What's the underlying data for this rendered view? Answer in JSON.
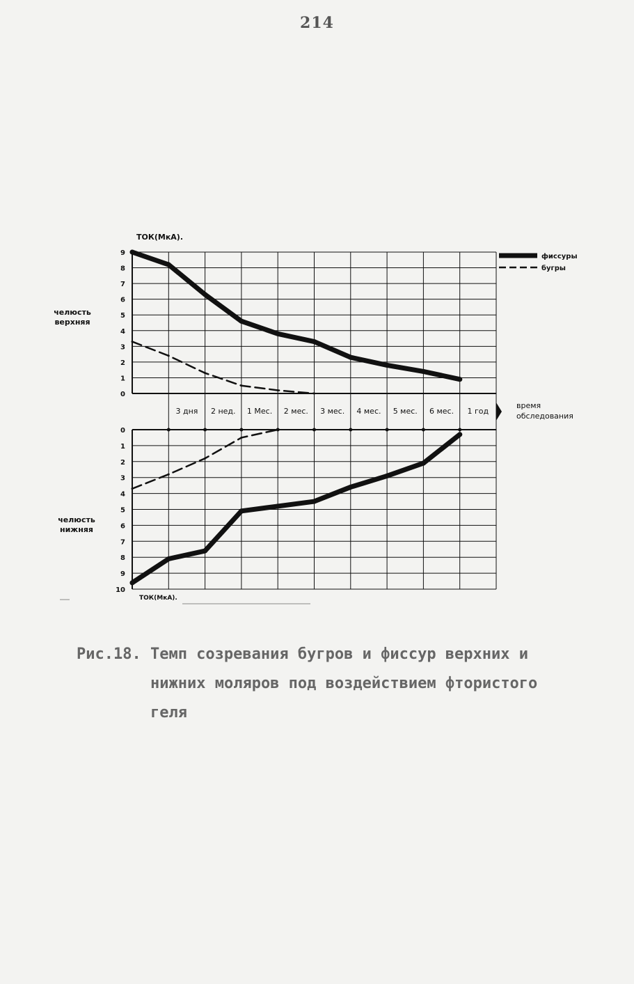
{
  "page": {
    "number": "214"
  },
  "caption": {
    "line1": "Рис.18. Темп созревания бугров и фиссур верхних и",
    "line2": "нижних моляров под воздействием фтористого",
    "line3": "геля"
  },
  "chart_data": [
    {
      "type": "line",
      "ylabel": "ТОК(МкА).",
      "row_label": [
        "челюсть",
        "верхняя"
      ],
      "y_ticks": [
        "0",
        "1",
        "2",
        "3",
        "4",
        "5",
        "6",
        "7",
        "8",
        "9"
      ],
      "ylim": [
        0,
        9
      ],
      "x_index": [
        0,
        1,
        2,
        3,
        4,
        5,
        6,
        7,
        8,
        9
      ],
      "series": [
        {
          "name": "фиссуры",
          "style": "solid-thick",
          "x": [
            0,
            1,
            2,
            3,
            4,
            5,
            6,
            7,
            8,
            9
          ],
          "values": [
            9,
            8.2,
            6.3,
            4.6,
            3.8,
            3.3,
            2.3,
            1.8,
            1.4,
            0.9
          ]
        },
        {
          "name": "бугры",
          "style": "dashed",
          "x": [
            0,
            1,
            2,
            3,
            4,
            5
          ],
          "values": [
            3.3,
            2.4,
            1.3,
            0.5,
            0.2,
            0
          ]
        }
      ]
    },
    {
      "type": "line",
      "ylabel": "ТОК(МкА).",
      "row_label": [
        "челюсть",
        "нижняя"
      ],
      "y_ticks": [
        "0",
        "1",
        "2",
        "3",
        "4",
        "5",
        "6",
        "7",
        "8",
        "9",
        "10"
      ],
      "ylim": [
        0,
        10
      ],
      "y_inverted": true,
      "series": [
        {
          "name": "фиссуры",
          "style": "solid-thick",
          "x": [
            0,
            1,
            2,
            3,
            4,
            5,
            6,
            7,
            8,
            9
          ],
          "values": [
            9.6,
            8.1,
            7.6,
            5.1,
            4.8,
            4.5,
            3.6,
            2.9,
            2.1,
            0.3
          ]
        },
        {
          "name": "бугры",
          "style": "dashed",
          "x": [
            0,
            1,
            2,
            3,
            4
          ],
          "values": [
            3.7,
            2.8,
            1.8,
            0.5,
            0
          ]
        }
      ]
    }
  ],
  "time_axis": {
    "labels": [
      "3 дня",
      "2 нед.",
      "1 Мес.",
      "2 мес.",
      "3 мес.",
      "4 мес.",
      "5 мес.",
      "6 мес.",
      "1 год"
    ],
    "title": [
      "время",
      "обследования"
    ]
  },
  "legend": {
    "placement": "top-right",
    "items": [
      {
        "label": "фиссуры",
        "style": "solid-thick"
      },
      {
        "label": "бугры",
        "style": "dashed"
      }
    ]
  },
  "colors": {
    "ink": "#111111",
    "paper": "#f3f3f1",
    "caption": "#666666"
  }
}
